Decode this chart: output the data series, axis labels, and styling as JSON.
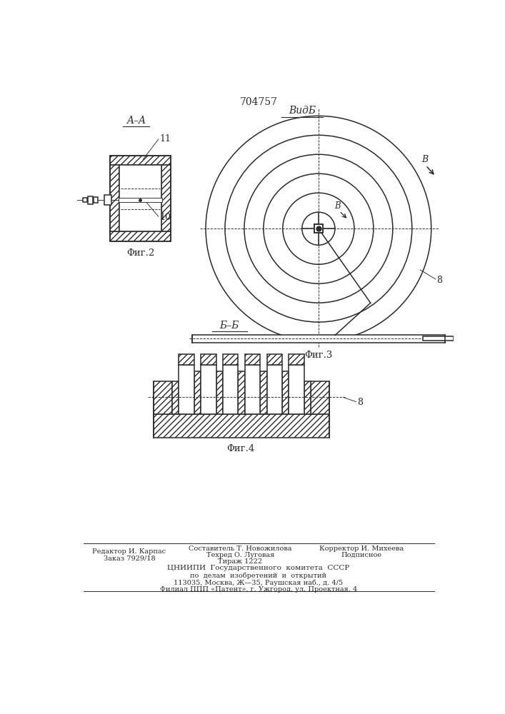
{
  "title": "704757",
  "bg_color": "#ffffff",
  "line_color": "#2a2a2a",
  "fig2_label": "A–A",
  "fig2_caption": "Φиг.2",
  "fig3_label": "ВидБ",
  "fig3_caption": "Φиг.3",
  "fig4_label": "Б–Б",
  "fig4_caption": "Φиг.4",
  "label_11": "11",
  "label_10": "10",
  "label_8a": "8",
  "label_8b": "8",
  "label_B_outer": "В",
  "label_B_inner": "В",
  "footer_left1": "Редактор И. Карпас",
  "footer_left2": "Заказ 7929/18",
  "footer_mid1": "Составитель Т. Новожилова",
  "footer_mid2": "Техред О. Луговая",
  "footer_mid3": "Тираж 1222",
  "footer_right1": "Корректор И. Михеева",
  "footer_right2": "Подписное",
  "footer_cniip1": "ЦНИИПИ  Государственного  комитета  СССР",
  "footer_cniip2": "по  делам  изобретений  и  открытий",
  "footer_cniip3": "113035, Москва, Ж—35, Раушская наб., д. 4/5",
  "footer_cniip4": "Филиал ППП «Патент», г. Ужгород, ул. Проектная, 4"
}
